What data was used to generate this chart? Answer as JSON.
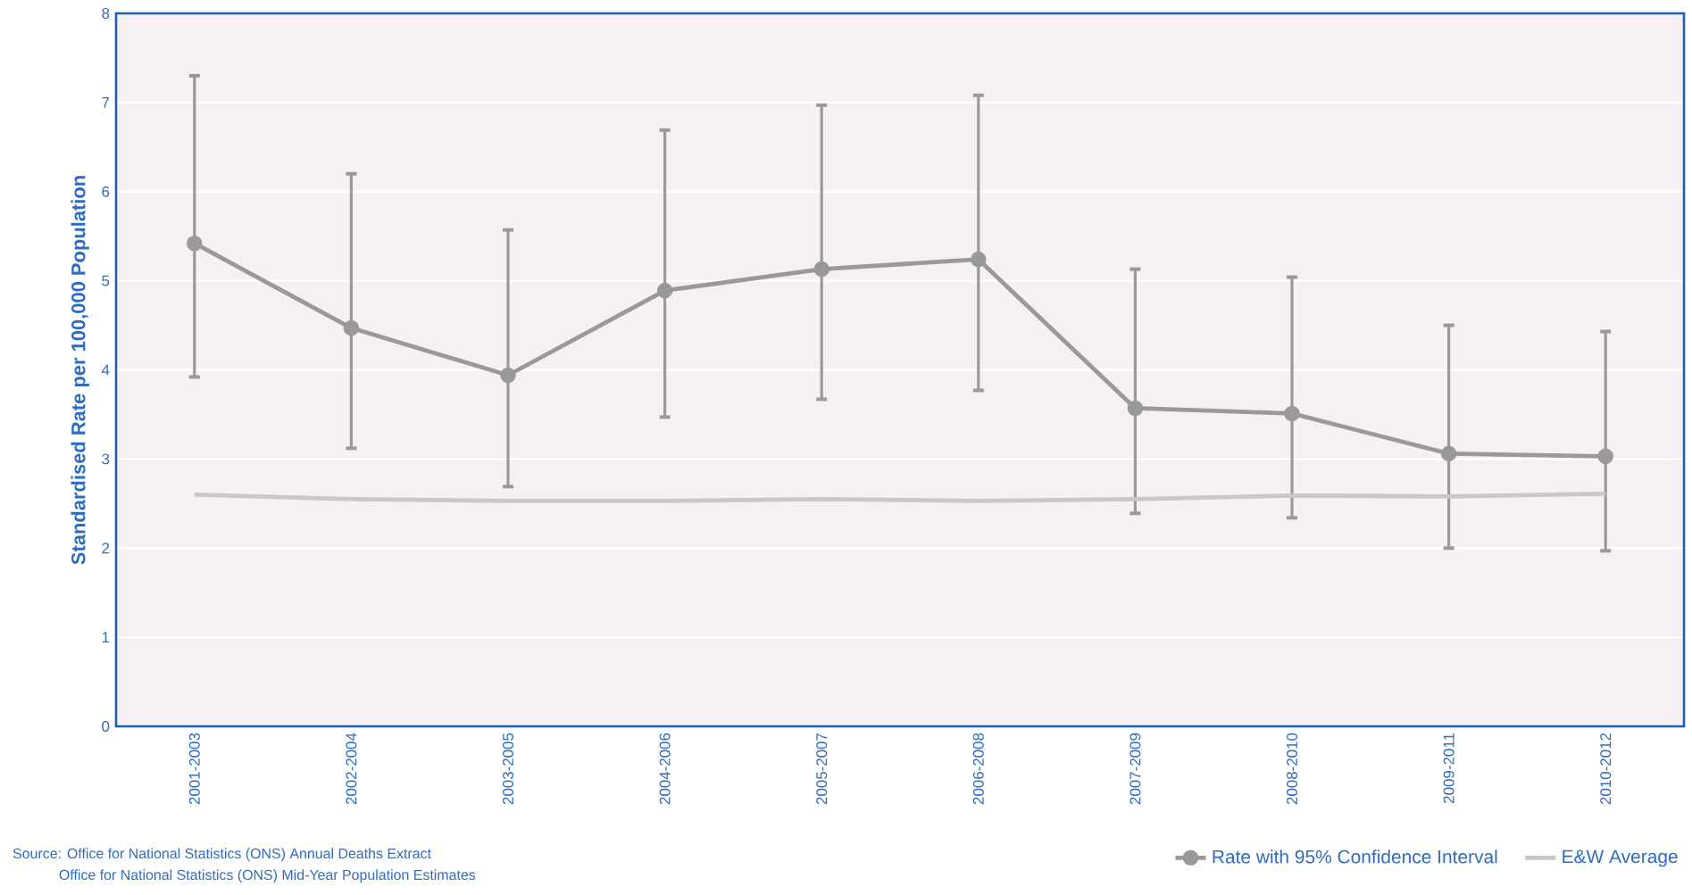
{
  "chart_data": {
    "type": "line",
    "ylabel": "Standardised Rate per 100,000 Population",
    "categories": [
      "2001-2003",
      "2002-2004",
      "2003-2005",
      "2004-2006",
      "2005-2007",
      "2006-2008",
      "2007-2009",
      "2008-2010",
      "2009-2011",
      "2010-2012"
    ],
    "series": [
      {
        "name": "Rate with 95% Confidence Interval",
        "color": "#999999",
        "marker": "circle",
        "values": [
          5.42,
          4.47,
          3.94,
          4.89,
          5.13,
          5.24,
          3.57,
          3.51,
          3.06,
          3.03
        ],
        "errors": [
          [
            3.9,
            7.32
          ],
          [
            3.1,
            6.22
          ],
          [
            2.67,
            5.59
          ],
          [
            3.45,
            6.71
          ],
          [
            3.65,
            6.99
          ],
          [
            3.75,
            7.1
          ],
          [
            2.37,
            5.15
          ],
          [
            2.32,
            5.06
          ],
          [
            1.98,
            4.52
          ],
          [
            1.95,
            4.45
          ]
        ]
      },
      {
        "name": "E&W Average",
        "color": "#c8c8c8",
        "marker": "none",
        "values": [
          2.6,
          2.55,
          2.53,
          2.53,
          2.55,
          2.53,
          2.55,
          2.59,
          2.58,
          2.61
        ]
      }
    ],
    "ylim": [
      0,
      8
    ],
    "yticks": [
      0,
      1,
      2,
      3,
      4,
      5,
      6,
      7,
      8
    ],
    "grid": "y",
    "legend": "bottom right",
    "annotations": [
      "Source:  Office for National Statistics (ONS) Annual Deaths Extract",
      "Office for National Statistics (ONS) Mid-Year Population Estimates"
    ]
  }
}
